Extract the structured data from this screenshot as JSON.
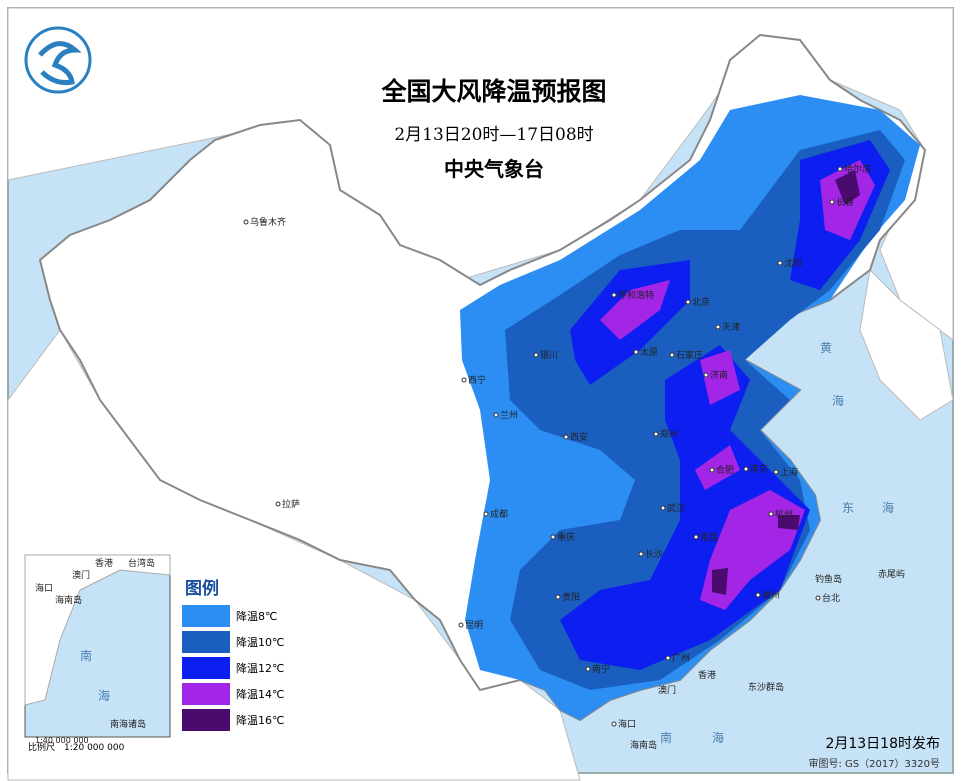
{
  "header": {
    "title": "全国大风降温预报图",
    "subtitle": "2月13日20时—17日08时",
    "issuer": "中央气象台"
  },
  "legend": {
    "title": "图例",
    "items": [
      {
        "label": "降温8℃",
        "color": "#2c8ef2"
      },
      {
        "label": "降温10℃",
        "color": "#1a5fbf"
      },
      {
        "label": "降温12℃",
        "color": "#0d1ef0"
      },
      {
        "label": "降温14℃",
        "color": "#a325e6"
      },
      {
        "label": "降温16℃",
        "color": "#4b0a6e"
      }
    ]
  },
  "cities": [
    "乌鲁木齐",
    "拉萨",
    "西宁",
    "兰州",
    "银川",
    "呼和浩特",
    "北京",
    "天津",
    "石家庄",
    "太原",
    "济南",
    "西安",
    "郑州",
    "成都",
    "重庆",
    "武汉",
    "合肥",
    "南京",
    "上海",
    "杭州",
    "长沙",
    "南昌",
    "贵阳",
    "昆明",
    "南宁",
    "广州",
    "福州",
    "台北",
    "沈阳",
    "长春",
    "哈尔滨",
    "海口"
  ],
  "map_labels": [
    "黄",
    "海",
    "东",
    "海",
    "南",
    "海",
    "钓鱼岛",
    "赤尾屿",
    "东沙群岛",
    "海南岛",
    "香港",
    "澳门"
  ],
  "inset": {
    "labels": [
      "香港",
      "台湾岛",
      "澳门",
      "海口",
      "海南岛",
      "南",
      "海",
      "南海诸岛"
    ],
    "scale": "1:40 000 000"
  },
  "scale_note": "比例尺　1:20 000 000",
  "footer": {
    "issued": "2月13日18时发布",
    "approval": "审图号: GS（2017）3320号"
  }
}
